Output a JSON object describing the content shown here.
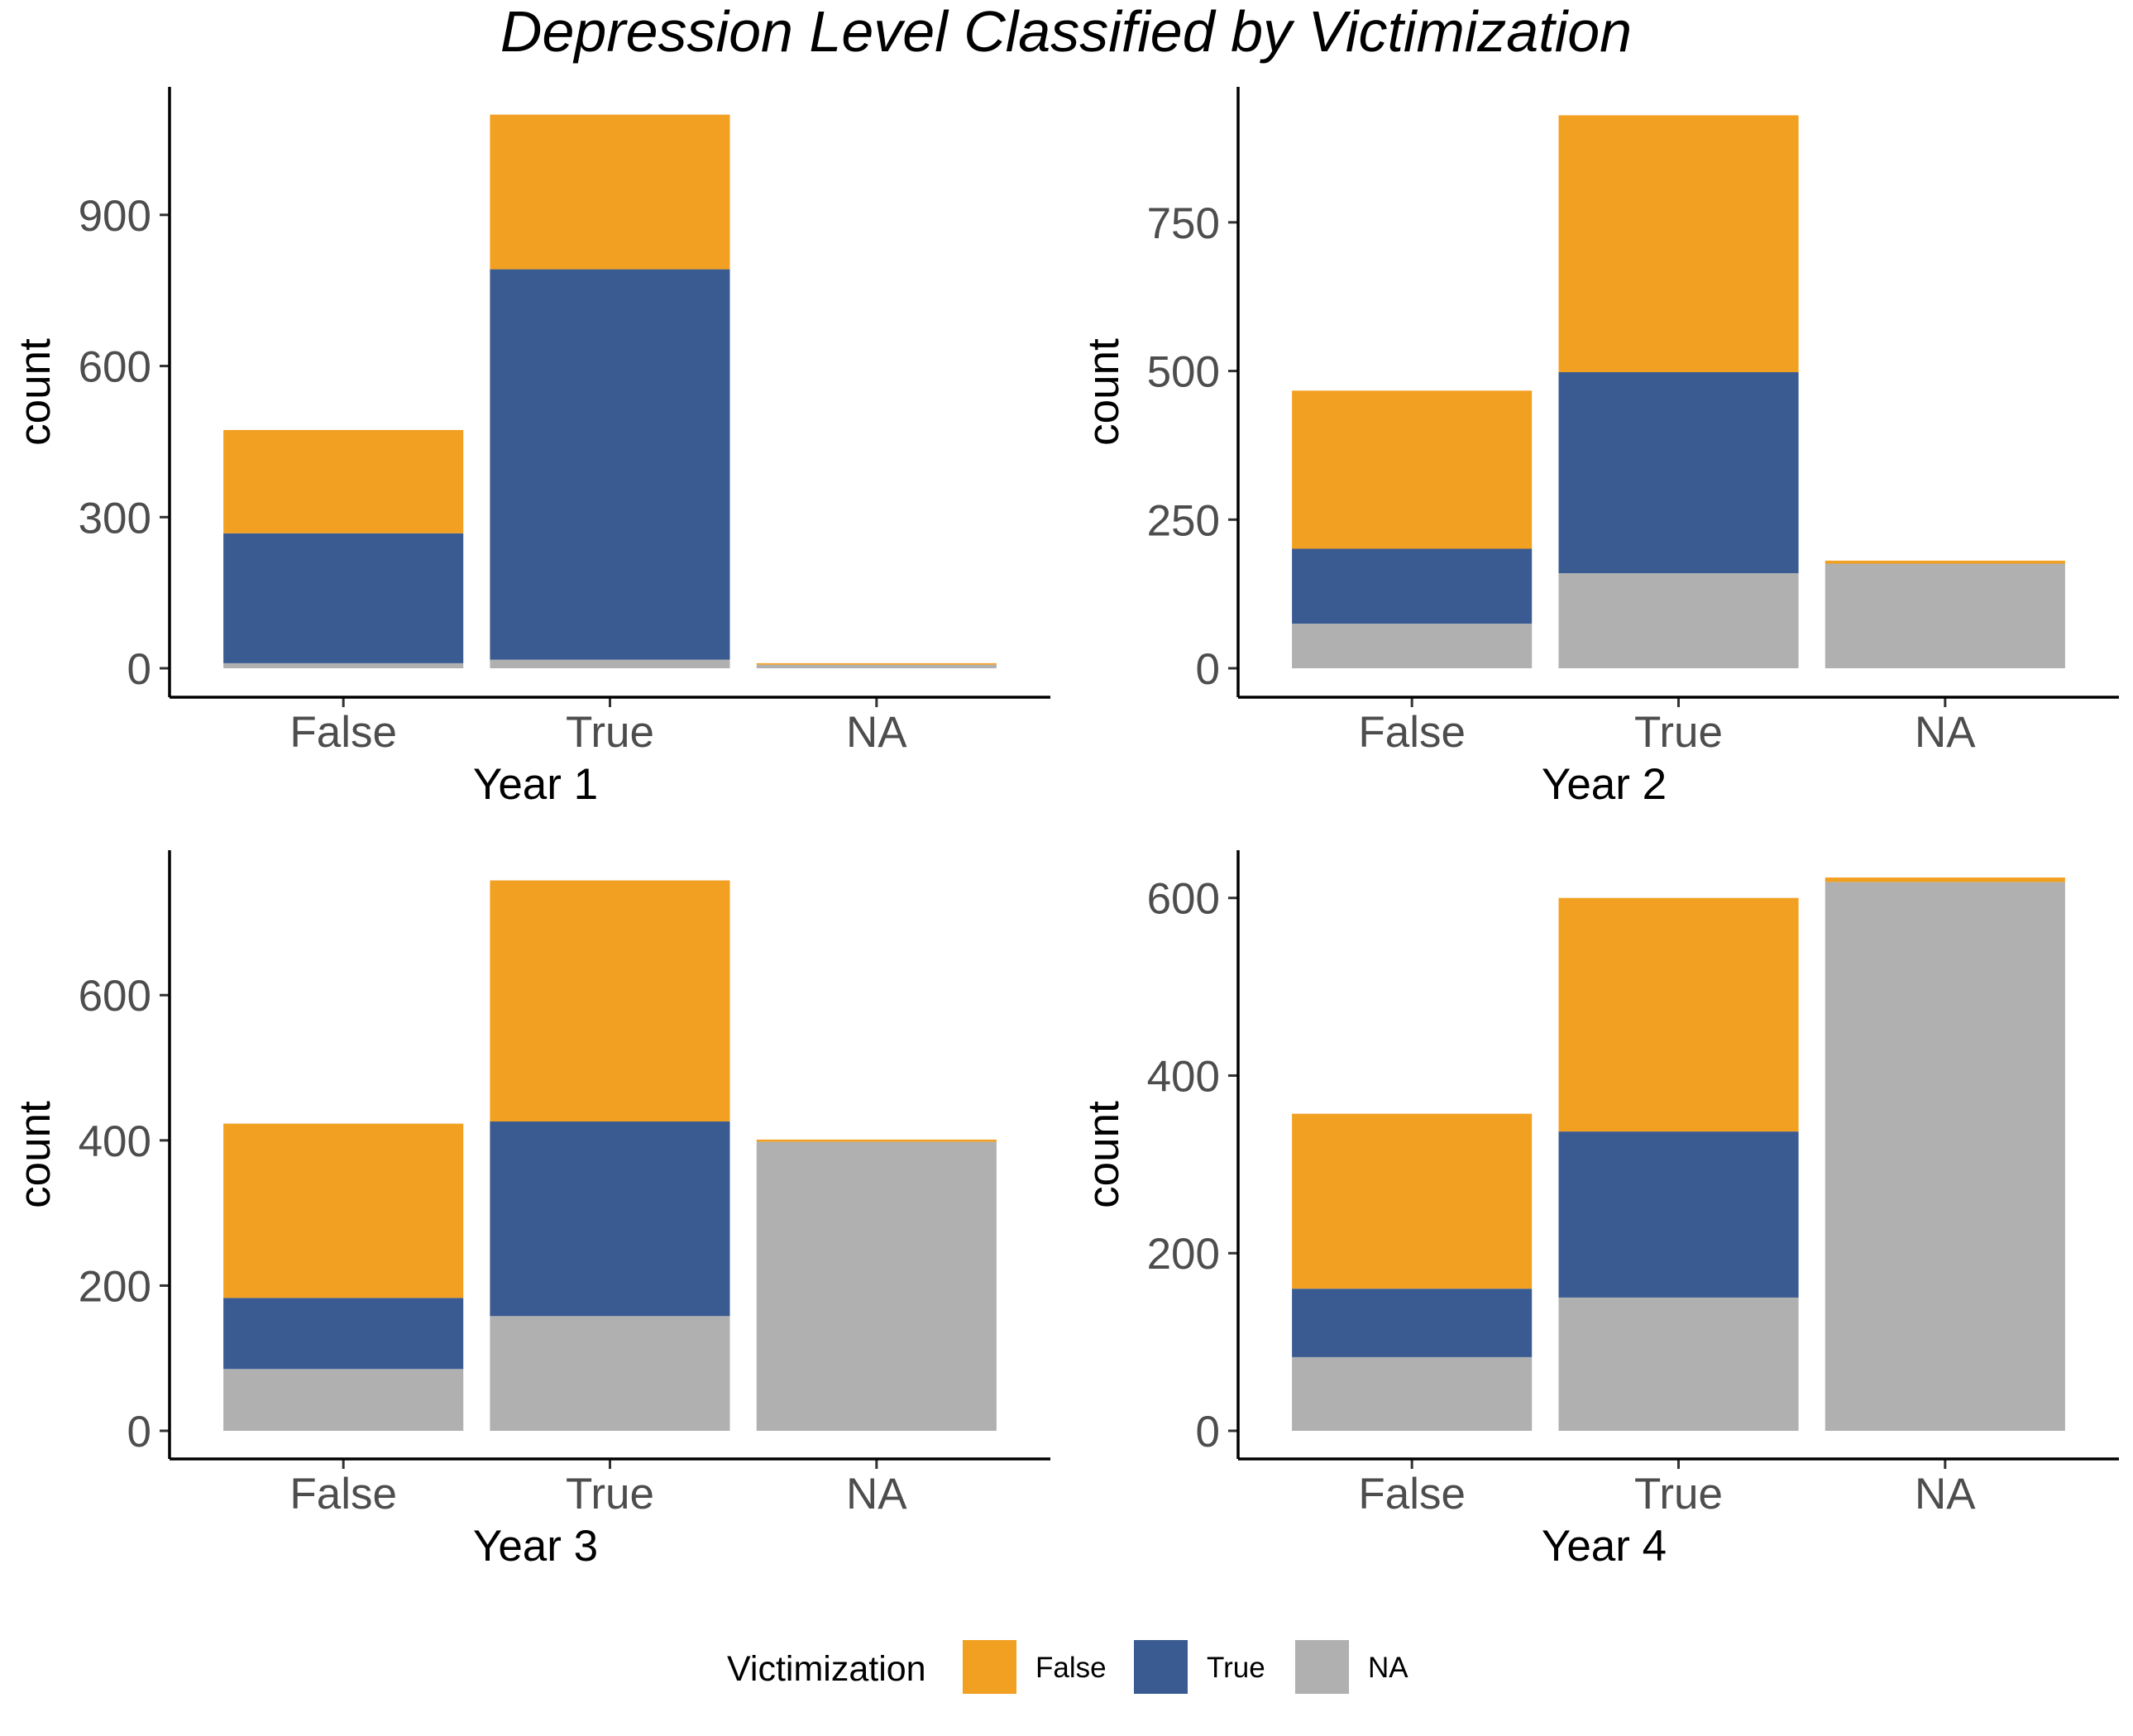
{
  "chart_data": {
    "type": "bar",
    "stacked": true,
    "title": "Depression Level Classified by Victimization",
    "ylabel": "count",
    "categories": [
      "False",
      "True",
      "NA"
    ],
    "legend": {
      "title": "Victimization",
      "position": "bottom",
      "entries": [
        "False",
        "True",
        "NA"
      ]
    },
    "colors": {
      "False": "#F2A022",
      "True": "#3A5B92",
      "NA": "#B0B0B0"
    },
    "grid": false,
    "panels": [
      {
        "xlabel": "Year 1",
        "ylim": [
          0,
          1100
        ],
        "yticks": [
          0,
          300,
          600,
          900
        ],
        "series": [
          {
            "name": "NA",
            "values": [
              10,
              17,
              7
            ]
          },
          {
            "name": "True",
            "values": [
              258,
              775,
              0
            ]
          },
          {
            "name": "False",
            "values": [
              205,
              307,
              3
            ]
          }
        ]
      },
      {
        "xlabel": "Year 2",
        "ylim": [
          0,
          932
        ],
        "yticks": [
          0,
          250,
          500,
          750
        ],
        "series": [
          {
            "name": "NA",
            "values": [
              75,
              160,
              176
            ]
          },
          {
            "name": "True",
            "values": [
              126,
              338,
              0
            ]
          },
          {
            "name": "False",
            "values": [
              266,
              432,
              5
            ]
          }
        ]
      },
      {
        "xlabel": "Year 3",
        "ylim": [
          0,
          762
        ],
        "yticks": [
          0,
          200,
          400,
          600
        ],
        "series": [
          {
            "name": "NA",
            "values": [
              85,
              158,
              398
            ]
          },
          {
            "name": "True",
            "values": [
              98,
              268,
              0
            ]
          },
          {
            "name": "False",
            "values": [
              240,
              332,
              3
            ]
          }
        ]
      },
      {
        "xlabel": "Year 4",
        "ylim": [
          0,
          623
        ],
        "yticks": [
          0,
          200,
          400,
          600
        ],
        "series": [
          {
            "name": "NA",
            "values": [
              83,
              150,
              618
            ]
          },
          {
            "name": "True",
            "values": [
              77,
              187,
              0
            ]
          },
          {
            "name": "False",
            "values": [
              197,
              263,
              5
            ]
          }
        ]
      }
    ]
  }
}
